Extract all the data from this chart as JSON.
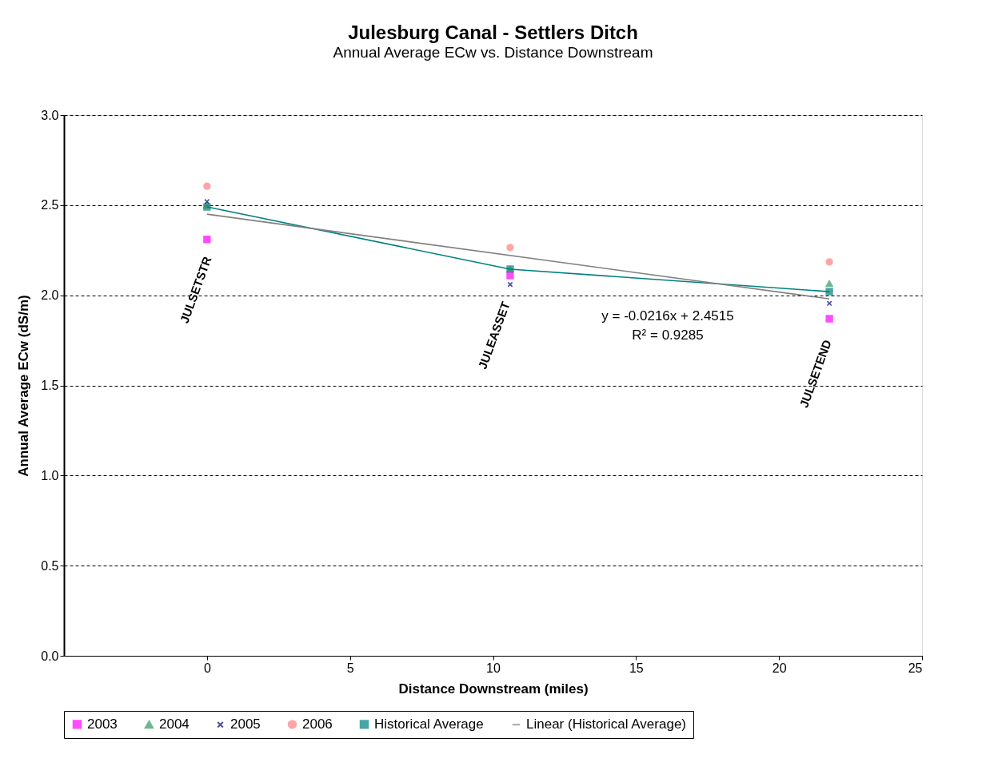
{
  "chart_data": {
    "type": "scatter",
    "title": "Julesburg Canal - Settlers Ditch",
    "subtitle": "Annual Average ECw vs. Distance Downstream",
    "xlabel": "Distance Downstream (miles)",
    "ylabel": "Annual Average ECw (dS/m)",
    "x": [
      0,
      10.6,
      21.76
    ],
    "series": [
      {
        "name": "2003",
        "color": "#ff00ff",
        "marker": "square",
        "values": [
          2.31,
          2.11,
          1.87
        ]
      },
      {
        "name": "2004",
        "color": "#339966",
        "marker": "triangle",
        "values": [
          2.5,
          2.145,
          2.065
        ]
      },
      {
        "name": "2005",
        "color": "#000080",
        "marker": "cross",
        "values": [
          2.52,
          2.06,
          1.955
        ]
      },
      {
        "name": "2006",
        "color": "#ff8080",
        "marker": "circle",
        "values": [
          2.605,
          2.265,
          2.185
        ]
      },
      {
        "name": "Historical Average",
        "type": "line",
        "color": "#008080",
        "marker": "square",
        "values": [
          2.49,
          2.145,
          2.02
        ]
      },
      {
        "name": "Linear (Historical Average)",
        "type": "line",
        "color": "#808080",
        "marker": "none",
        "x": [
          0,
          21.76
        ],
        "values": [
          2.45,
          1.98
        ]
      }
    ],
    "xlim": [
      -5,
      25
    ],
    "xticks": [
      0,
      5,
      10,
      15,
      20,
      25
    ],
    "ylim": [
      0,
      3
    ],
    "yticks": [
      {
        "value": 0,
        "label": "0.0"
      },
      {
        "value": 0.5,
        "label": "0.5"
      },
      {
        "value": 1,
        "label": "1.0"
      },
      {
        "value": 1.5,
        "label": "1.5"
      },
      {
        "value": 2,
        "label": "2.0"
      },
      {
        "value": 2.5,
        "label": "2.5"
      },
      {
        "value": 3,
        "label": "3.0"
      }
    ],
    "grid": "y",
    "legend": "bottom",
    "annotations": [
      "JULSETSTR",
      "JULEASSET",
      "JULSETEND",
      "y = -0.0216x + 2.4515",
      "R² = 0.9285"
    ]
  }
}
